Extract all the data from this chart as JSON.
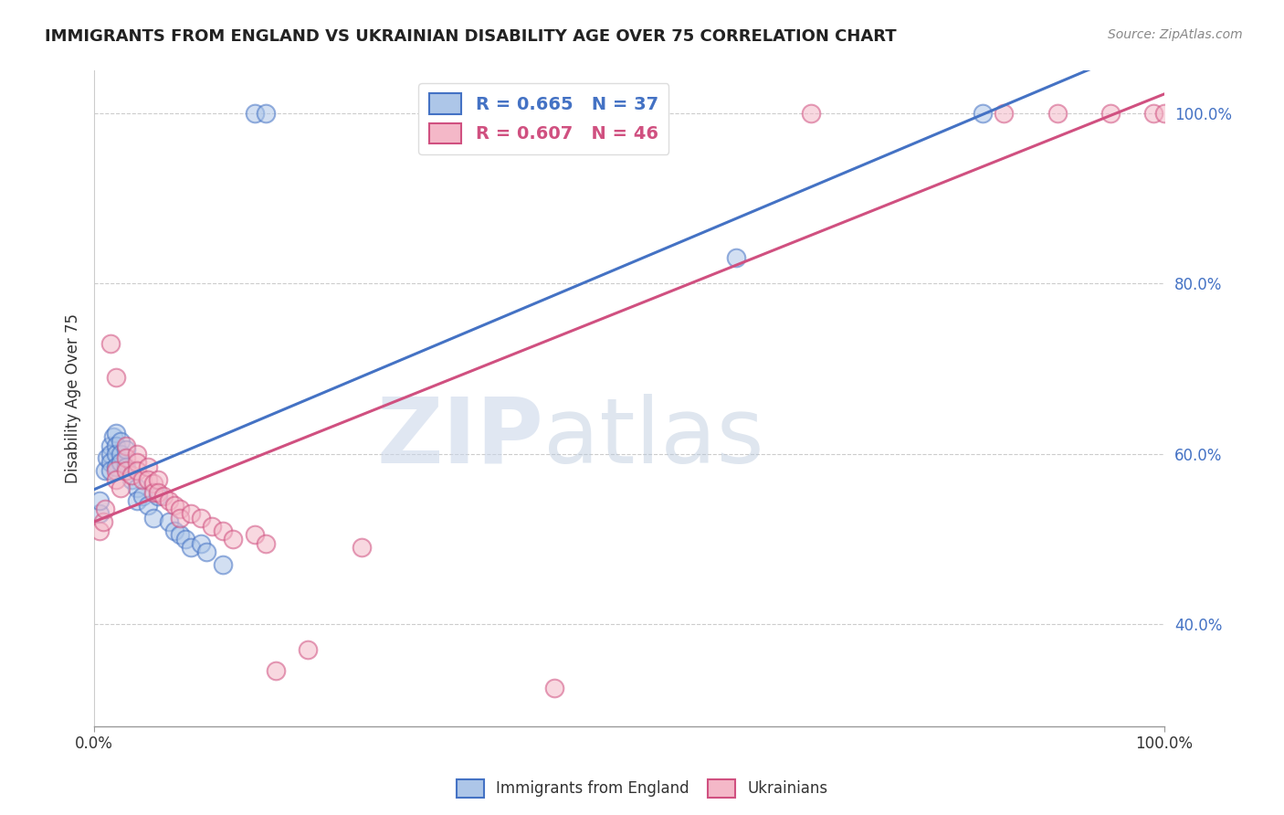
{
  "title": "IMMIGRANTS FROM ENGLAND VS UKRAINIAN DISABILITY AGE OVER 75 CORRELATION CHART",
  "source": "Source: ZipAtlas.com",
  "ylabel": "Disability Age Over 75",
  "blue_R": 0.665,
  "blue_N": 37,
  "pink_R": 0.607,
  "pink_N": 46,
  "blue_color": "#adc6e8",
  "pink_color": "#f4b8c8",
  "blue_line_color": "#4472c4",
  "pink_line_color": "#d05080",
  "legend_label_blue": "Immigrants from England",
  "legend_label_pink": "Ukrainians",
  "watermark_zip": "ZIP",
  "watermark_atlas": "atlas",
  "blue_points": [
    [
      0.5,
      53.0
    ],
    [
      0.5,
      54.5
    ],
    [
      1.0,
      58.0
    ],
    [
      1.2,
      59.5
    ],
    [
      1.5,
      61.0
    ],
    [
      1.5,
      60.0
    ],
    [
      1.5,
      59.0
    ],
    [
      1.5,
      58.0
    ],
    [
      1.8,
      62.0
    ],
    [
      2.0,
      62.5
    ],
    [
      2.0,
      61.0
    ],
    [
      2.0,
      60.0
    ],
    [
      2.0,
      58.5
    ],
    [
      2.5,
      61.5
    ],
    [
      2.5,
      60.0
    ],
    [
      2.5,
      59.0
    ],
    [
      3.0,
      60.5
    ],
    [
      3.0,
      58.5
    ],
    [
      3.5,
      57.0
    ],
    [
      4.0,
      56.0
    ],
    [
      4.0,
      54.5
    ],
    [
      4.5,
      55.0
    ],
    [
      5.0,
      54.0
    ],
    [
      5.5,
      52.5
    ],
    [
      6.0,
      55.0
    ],
    [
      7.0,
      52.0
    ],
    [
      7.5,
      51.0
    ],
    [
      8.0,
      50.5
    ],
    [
      8.5,
      50.0
    ],
    [
      9.0,
      49.0
    ],
    [
      10.0,
      49.5
    ],
    [
      10.5,
      48.5
    ],
    [
      12.0,
      47.0
    ],
    [
      15.0,
      100.0
    ],
    [
      16.0,
      100.0
    ],
    [
      60.0,
      83.0
    ],
    [
      83.0,
      100.0
    ]
  ],
  "pink_points": [
    [
      0.5,
      51.0
    ],
    [
      0.8,
      52.0
    ],
    [
      1.0,
      53.5
    ],
    [
      1.5,
      73.0
    ],
    [
      2.0,
      69.0
    ],
    [
      2.0,
      58.0
    ],
    [
      2.0,
      57.0
    ],
    [
      2.5,
      56.0
    ],
    [
      3.0,
      61.0
    ],
    [
      3.0,
      59.5
    ],
    [
      3.0,
      58.0
    ],
    [
      3.5,
      57.5
    ],
    [
      4.0,
      60.0
    ],
    [
      4.0,
      59.0
    ],
    [
      4.0,
      58.0
    ],
    [
      4.5,
      57.0
    ],
    [
      5.0,
      58.5
    ],
    [
      5.0,
      57.0
    ],
    [
      5.5,
      56.5
    ],
    [
      5.5,
      55.5
    ],
    [
      6.0,
      57.0
    ],
    [
      6.0,
      55.5
    ],
    [
      6.5,
      55.0
    ],
    [
      7.0,
      54.5
    ],
    [
      7.5,
      54.0
    ],
    [
      8.0,
      53.5
    ],
    [
      8.0,
      52.5
    ],
    [
      9.0,
      53.0
    ],
    [
      10.0,
      52.5
    ],
    [
      11.0,
      51.5
    ],
    [
      12.0,
      51.0
    ],
    [
      13.0,
      50.0
    ],
    [
      15.0,
      50.5
    ],
    [
      16.0,
      49.5
    ],
    [
      17.0,
      34.5
    ],
    [
      20.0,
      37.0
    ],
    [
      25.0,
      49.0
    ],
    [
      40.0,
      100.0
    ],
    [
      43.0,
      32.5
    ],
    [
      50.0,
      100.0
    ],
    [
      67.0,
      100.0
    ],
    [
      85.0,
      100.0
    ],
    [
      90.0,
      100.0
    ],
    [
      95.0,
      100.0
    ],
    [
      99.0,
      100.0
    ],
    [
      100.0,
      100.0
    ]
  ],
  "xlim": [
    0.0,
    100.0
  ],
  "ylim": [
    28.0,
    105.0
  ],
  "ytick_positions": [
    40.0,
    60.0,
    80.0,
    100.0
  ],
  "ytick_labels": [
    "40.0%",
    "60.0%",
    "80.0%",
    "100.0%"
  ],
  "xtick_positions": [
    0.0,
    100.0
  ],
  "xtick_labels": [
    "0.0%",
    "100.0%"
  ],
  "grid_lines": [
    40.0,
    60.0,
    80.0,
    100.0
  ],
  "figsize": [
    14.06,
    8.92
  ],
  "dpi": 100
}
